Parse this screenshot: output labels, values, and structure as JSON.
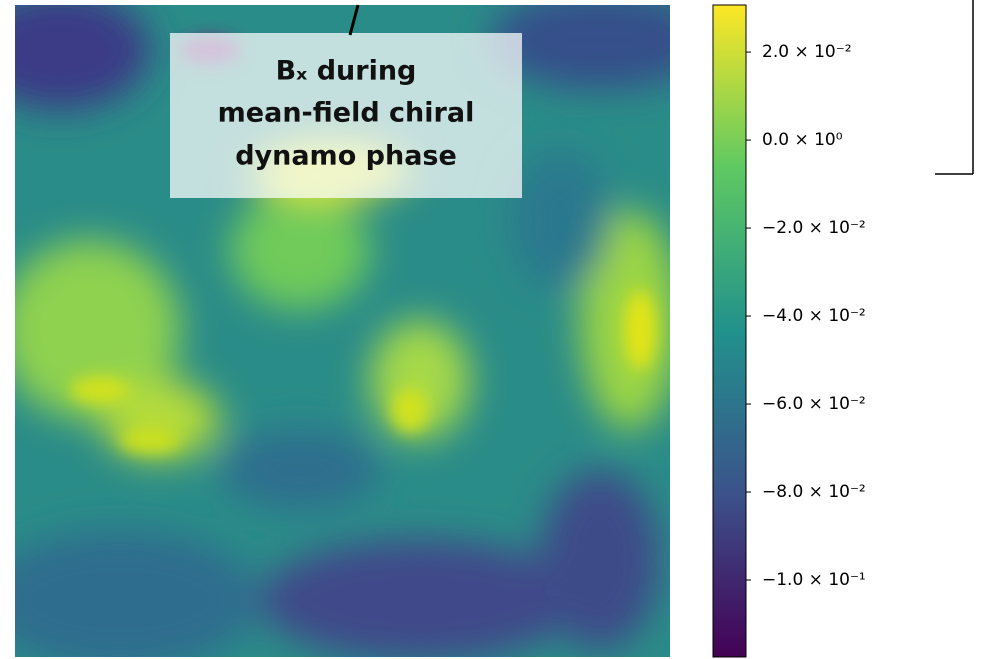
{
  "chart_data": {
    "type": "heatmap",
    "annotation": [
      "Bₓ during",
      "mean-field chiral",
      "dynamo phase"
    ],
    "colorbar": {
      "colors": [
        "#440154",
        "#3b528b",
        "#21918c",
        "#5ec962",
        "#fde725"
      ],
      "ylim": [
        -0.1175,
        0.0307
      ],
      "yticks": [
        {
          "value": 0.02,
          "label": "2.0 × 10⁻²"
        },
        {
          "value": 0,
          "label": "0.0 × 10⁰"
        },
        {
          "value": -0.02,
          "label": "−2.0 × 10⁻²"
        },
        {
          "value": -0.04,
          "label": "−4.0 × 10⁻²"
        },
        {
          "value": -0.06,
          "label": "−6.0 × 10⁻²"
        },
        {
          "value": -0.08,
          "label": "−8.0 × 10⁻²"
        },
        {
          "value": -0.1,
          "label": "−1.0 × 10⁻¹"
        }
      ]
    },
    "edge_axis_tick": 0.4
  }
}
